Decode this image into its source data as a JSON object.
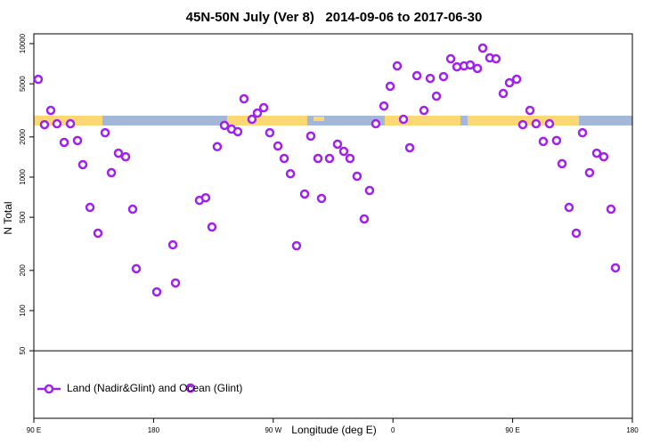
{
  "chart_data": {
    "type": "scatter",
    "title": "45N-50N July (Ver 8)   2014-09-06 to 2017-06-30",
    "xlabel": "Longitude (deg E)",
    "ylabel": "N Total",
    "log_y": true,
    "xlim": [
      90,
      540
    ],
    "ylim": [
      15.6,
      11840
    ],
    "xticks": [
      {
        "value": 90,
        "label": "90 E"
      },
      180,
      {
        "value": 270,
        "label": "90 W"
      },
      {
        "value": 360,
        "label": "0"
      },
      {
        "value": 450,
        "label": "90 E"
      },
      {
        "value": 540,
        "label": "180"
      }
    ],
    "yticks": [
      50,
      100,
      200,
      500,
      1000,
      2000,
      5000,
      10000
    ],
    "legend_position": "bottom-left",
    "series": [
      {
        "name": "Land (Nadir&Glint) and Ocean (Glint)",
        "color": "#a020f0",
        "x": [
          93.3,
          98,
          102.7,
          107.4,
          112.8,
          117.5,
          122.8,
          126.8,
          132.2,
          138.2,
          143.6,
          148.3,
          153.6,
          159,
          164.3,
          167,
          182.4,
          194.5,
          196.5,
          207.8,
          214.5,
          219.2,
          223.9,
          227.9,
          233.3,
          238.6,
          243.3,
          248,
          254,
          258.1,
          262.8,
          267.4,
          273.5,
          278.2,
          282.9,
          287.5,
          293.6,
          298.2,
          303.6,
          306.3,
          312.3,
          318.3,
          323,
          327.7,
          333,
          338.4,
          342.4,
          347.1,
          353.2,
          357.9,
          363.2,
          367.9,
          372.6,
          378,
          383.3,
          388,
          392.7,
          398,
          403.4,
          408.1,
          413.4,
          418.1,
          423.5,
          427.5,
          432.8,
          437.5,
          442.9,
          447.6,
          453,
          457.6,
          463,
          467.6,
          473,
          477.7,
          483,
          487.1,
          492.4,
          497.8,
          502.5,
          507.8,
          513.2,
          518.5,
          523.9,
          527.3
        ],
        "values": [
          5400,
          2470,
          3160,
          2510,
          1820,
          2510,
          1880,
          1240,
          593,
          380,
          2150,
          1080,
          1510,
          1420,
          575,
          206,
          138,
          311,
          161,
          26.3,
          670,
          700,
          423,
          1690,
          2440,
          2290,
          2190,
          3860,
          2710,
          3020,
          3310,
          2150,
          1710,
          1380,
          1060,
          306,
          747,
          2030,
          1380,
          692,
          1380,
          1765,
          1560,
          1380,
          1015,
          486,
          794,
          2510,
          3410,
          4790,
          6810,
          2710,
          1660,
          5750,
          3160,
          5490,
          4040,
          5660,
          7700,
          6700,
          6810,
          6920,
          6520,
          9260,
          7820,
          7700,
          4230,
          5090,
          5410,
          2470,
          3160,
          2510,
          1850,
          2510,
          1880,
          1260,
          593,
          380,
          2150,
          1080,
          1510,
          1420,
          575,
          209
        ]
      }
    ]
  }
}
